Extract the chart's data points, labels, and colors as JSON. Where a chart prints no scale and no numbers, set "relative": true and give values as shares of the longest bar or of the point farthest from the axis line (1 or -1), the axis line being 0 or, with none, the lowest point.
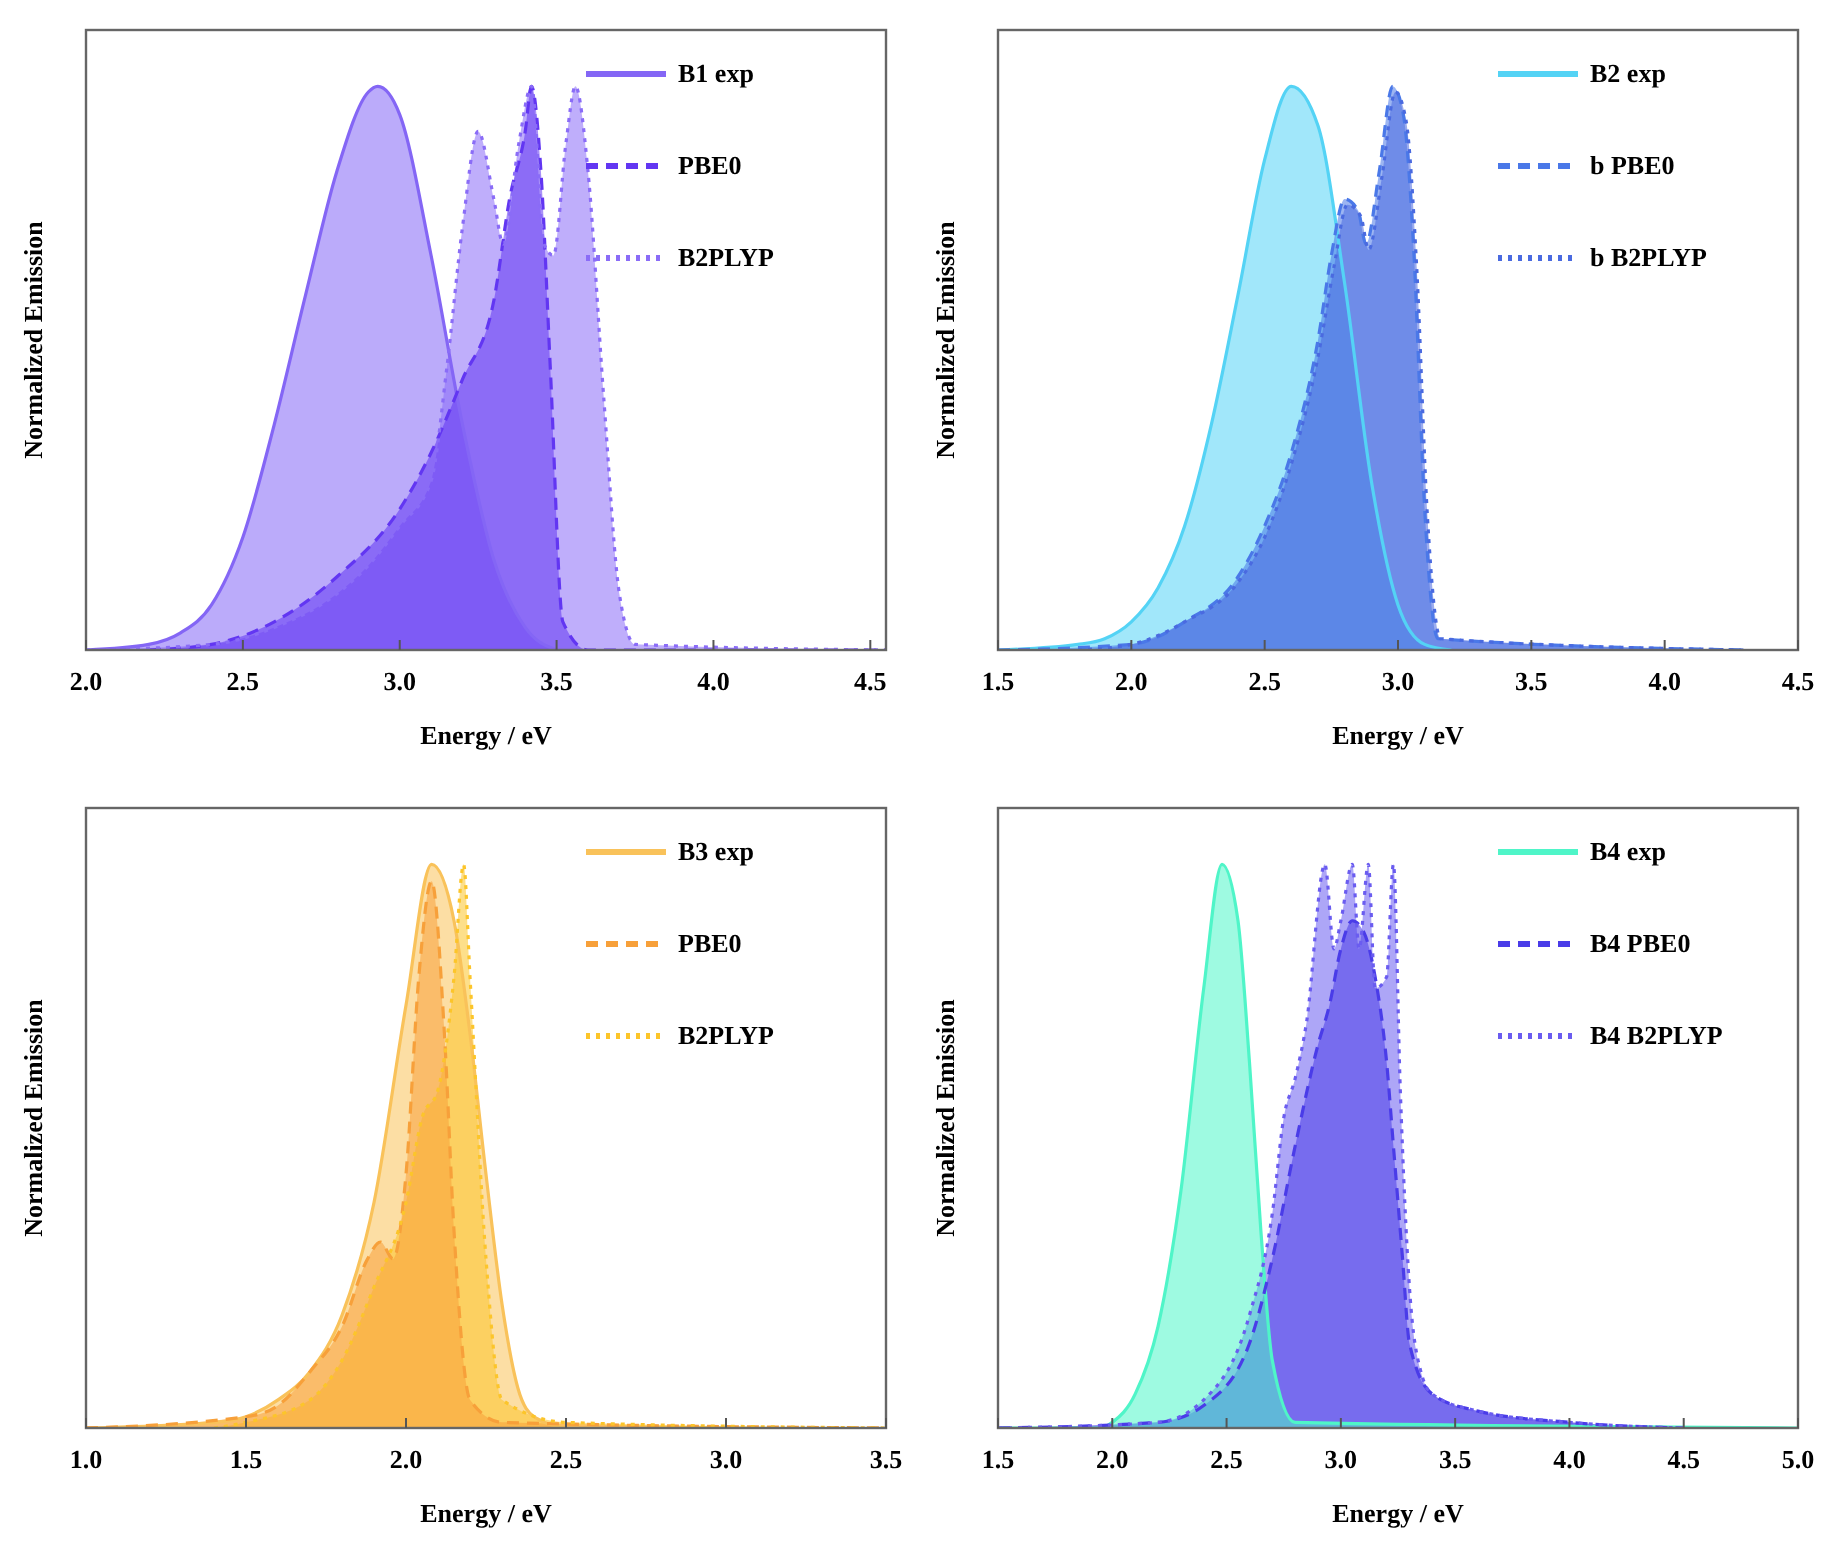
{
  "chart_data": [
    {
      "type": "area",
      "relative": true,
      "xlabel": "Energy / eV",
      "ylabel": "Normalized Emission",
      "legend": "top right",
      "xlim": [
        2.0,
        4.55
      ],
      "xticks": [
        {
          "value": 2,
          "label": "2.0"
        },
        2.5,
        {
          "value": 3,
          "label": "3.0"
        },
        3.5,
        {
          "value": 4,
          "label": "4.0"
        },
        4.5
      ],
      "series": [
        {
          "name": "B1 exp",
          "color": "#8466f5",
          "line_style": "solid",
          "x": [
            2.0,
            2.2,
            2.3,
            2.4,
            2.5,
            2.6,
            2.7,
            2.8,
            2.9,
            2.93,
            3.0,
            3.1,
            3.2,
            3.3,
            3.4,
            3.5
          ],
          "values": [
            0,
            0.01,
            0.03,
            0.08,
            0.2,
            0.4,
            0.63,
            0.85,
            0.99,
            1.0,
            0.95,
            0.7,
            0.4,
            0.16,
            0.04,
            0
          ]
        },
        {
          "name": "PBE0",
          "color": "#6236f2",
          "line_style": "dashed",
          "x": [
            2.2,
            2.4,
            2.6,
            2.8,
            3.0,
            3.1,
            3.2,
            3.3,
            3.35,
            3.4,
            3.42,
            3.45,
            3.48,
            3.52,
            3.6,
            4.55
          ],
          "values": [
            0,
            0.01,
            0.05,
            0.13,
            0.25,
            0.35,
            0.48,
            0.62,
            0.8,
            0.92,
            1.0,
            0.85,
            0.5,
            0.05,
            0,
            0
          ]
        },
        {
          "name": "B2PLYP",
          "color": "#8a6cf7",
          "line_style": "dotted",
          "x": [
            2.0,
            2.4,
            2.6,
            2.8,
            2.9,
            3.0,
            3.1,
            3.15,
            3.2,
            3.25,
            3.3,
            3.33,
            3.38,
            3.42,
            3.46,
            3.49,
            3.53,
            3.56,
            3.6,
            3.65,
            3.7,
            3.75,
            4.55
          ],
          "values": [
            0,
            0.01,
            0.04,
            0.1,
            0.15,
            0.22,
            0.3,
            0.5,
            0.75,
            0.92,
            0.8,
            0.72,
            0.9,
            1.0,
            0.72,
            0.7,
            0.9,
            1.0,
            0.85,
            0.45,
            0.1,
            0.01,
            0
          ]
        }
      ]
    },
    {
      "type": "area",
      "relative": true,
      "xlabel": "Energy / eV",
      "ylabel": "Normalized Emission",
      "legend": "top right",
      "xlim": [
        1.5,
        4.5
      ],
      "xticks": [
        1.5,
        {
          "value": 2,
          "label": "2.0"
        },
        2.5,
        {
          "value": 3,
          "label": "3.0"
        },
        3.5,
        {
          "value": 4,
          "label": "4.0"
        },
        4.5
      ],
      "series": [
        {
          "name": "B2 exp",
          "color": "#54d3f5",
          "line_style": "solid",
          "x": [
            1.5,
            1.8,
            1.9,
            2.0,
            2.1,
            2.2,
            2.3,
            2.4,
            2.5,
            2.6,
            2.7,
            2.8,
            2.9,
            3.0,
            3.1,
            3.2
          ],
          "values": [
            0,
            0.01,
            0.02,
            0.05,
            0.11,
            0.22,
            0.4,
            0.63,
            0.87,
            1.0,
            0.93,
            0.65,
            0.3,
            0.08,
            0.01,
            0
          ]
        },
        {
          "name": "b PBE0",
          "color": "#4a78e8",
          "line_style": "dashed",
          "x": [
            1.5,
            2.0,
            2.2,
            2.4,
            2.5,
            2.6,
            2.7,
            2.75,
            2.8,
            2.85,
            2.88,
            2.93,
            2.98,
            3.02,
            3.06,
            3.1,
            3.15,
            4.3
          ],
          "values": [
            0,
            0.01,
            0.05,
            0.13,
            0.22,
            0.35,
            0.55,
            0.7,
            0.8,
            0.78,
            0.72,
            0.85,
            1.0,
            0.95,
            0.7,
            0.25,
            0.02,
            0
          ]
        },
        {
          "name": "b B2PLYP",
          "color": "#4a6ae0",
          "line_style": "dotted",
          "x": [
            1.8,
            2.0,
            2.2,
            2.4,
            2.5,
            2.6,
            2.7,
            2.76,
            2.81,
            2.86,
            2.89,
            2.94,
            2.99,
            3.03,
            3.07,
            3.11,
            3.16,
            4.3
          ],
          "values": [
            0,
            0.01,
            0.05,
            0.12,
            0.2,
            0.33,
            0.52,
            0.68,
            0.79,
            0.77,
            0.71,
            0.84,
            0.99,
            0.94,
            0.68,
            0.24,
            0.02,
            0
          ]
        }
      ]
    },
    {
      "type": "area",
      "relative": true,
      "xlabel": "Energy / eV",
      "ylabel": "Normalized Emission",
      "legend": "top right",
      "xlim": [
        1.0,
        3.5
      ],
      "xticks": [
        {
          "value": 1,
          "label": "1.0"
        },
        1.5,
        {
          "value": 2,
          "label": "2.0"
        },
        2.5,
        {
          "value": 3,
          "label": "3.0"
        },
        3.5
      ],
      "series": [
        {
          "name": "B3 exp",
          "color": "#f9c25a",
          "line_style": "solid",
          "x": [
            1.0,
            1.4,
            1.5,
            1.6,
            1.7,
            1.8,
            1.9,
            2.0,
            2.08,
            2.15,
            2.2,
            2.25,
            2.3,
            2.35,
            2.4,
            2.5
          ],
          "values": [
            0,
            0.01,
            0.02,
            0.05,
            0.1,
            0.2,
            0.4,
            0.75,
            1.0,
            0.9,
            0.7,
            0.45,
            0.22,
            0.07,
            0.02,
            0
          ]
        },
        {
          "name": "PBE0",
          "color": "#f7a03a",
          "line_style": "dashed",
          "x": [
            1.0,
            1.5,
            1.6,
            1.7,
            1.8,
            1.88,
            1.92,
            1.96,
            2.0,
            2.04,
            2.08,
            2.12,
            2.15,
            2.2,
            2.3,
            3.5
          ],
          "values": [
            0,
            0.02,
            0.04,
            0.1,
            0.18,
            0.3,
            0.33,
            0.3,
            0.45,
            0.8,
            0.97,
            0.7,
            0.35,
            0.05,
            0.01,
            0
          ]
        },
        {
          "name": "B2PLYP",
          "color": "#fcc52a",
          "line_style": "dotted",
          "x": [
            1.4,
            1.5,
            1.7,
            1.8,
            1.9,
            2.0,
            2.05,
            2.1,
            2.15,
            2.18,
            2.2,
            2.25,
            2.3,
            2.5,
            3.5
          ],
          "values": [
            0,
            0.01,
            0.05,
            0.12,
            0.25,
            0.4,
            0.55,
            0.6,
            0.8,
            1.0,
            0.8,
            0.3,
            0.05,
            0.01,
            0
          ]
        }
      ]
    },
    {
      "type": "area",
      "relative": true,
      "xlabel": "Energy / eV",
      "ylabel": "Normalized Emission",
      "legend": "top right",
      "xlim": [
        1.5,
        5.0
      ],
      "xticks": [
        1.5,
        {
          "value": 2,
          "label": "2.0"
        },
        2.5,
        {
          "value": 3,
          "label": "3.0"
        },
        3.5,
        {
          "value": 4,
          "label": "4.0"
        },
        4.5,
        {
          "value": 5,
          "label": "5.0"
        }
      ],
      "series": [
        {
          "name": "B4 exp",
          "color": "#4ff5c8",
          "line_style": "solid",
          "x": [
            1.5,
            1.95,
            2.0,
            2.1,
            2.2,
            2.3,
            2.4,
            2.48,
            2.55,
            2.6,
            2.65,
            2.7,
            2.8,
            5.0
          ],
          "values": [
            0,
            0,
            0.01,
            0.06,
            0.18,
            0.42,
            0.78,
            1.0,
            0.9,
            0.65,
            0.35,
            0.12,
            0.01,
            0
          ]
        },
        {
          "name": "B4 PBE0",
          "color": "#4a3ce8",
          "line_style": "dashed",
          "x": [
            1.5,
            2.2,
            2.4,
            2.6,
            2.7,
            2.8,
            2.9,
            2.95,
            3.0,
            3.05,
            3.1,
            3.15,
            3.2,
            3.23,
            3.27,
            3.3,
            3.4,
            3.6,
            4.0,
            4.5
          ],
          "values": [
            0,
            0.01,
            0.04,
            0.15,
            0.3,
            0.5,
            0.68,
            0.75,
            0.85,
            0.9,
            0.88,
            0.8,
            0.65,
            0.5,
            0.3,
            0.15,
            0.06,
            0.03,
            0.01,
            0
          ]
        },
        {
          "name": "B4 B2PLYP",
          "color": "#6a5cf0",
          "line_style": "dotted",
          "x": [
            1.5,
            2.2,
            2.4,
            2.6,
            2.7,
            2.75,
            2.8,
            2.85,
            2.93,
            2.97,
            3.0,
            3.05,
            3.08,
            3.12,
            3.15,
            3.2,
            3.23,
            3.26,
            3.3,
            3.35,
            3.4,
            3.6,
            4.0,
            4.5
          ],
          "values": [
            0,
            0.01,
            0.05,
            0.2,
            0.38,
            0.55,
            0.62,
            0.72,
            1.0,
            0.85,
            0.9,
            1.0,
            0.85,
            1.0,
            0.78,
            0.8,
            1.0,
            0.6,
            0.25,
            0.1,
            0.06,
            0.03,
            0.01,
            0
          ]
        }
      ]
    }
  ]
}
